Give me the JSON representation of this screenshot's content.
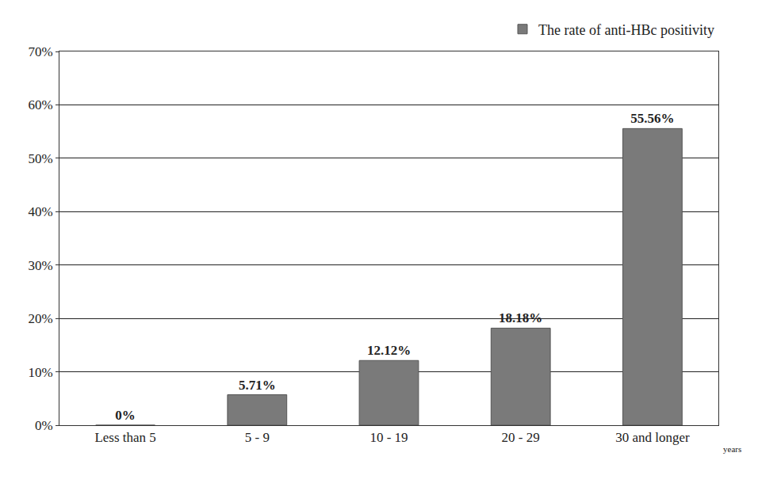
{
  "chart_data": {
    "type": "bar",
    "categories": [
      "Less than 5",
      "5 - 9",
      "10 - 19",
      "20 - 29",
      "30 and longer"
    ],
    "series": [
      {
        "name": "The rate of anti-HBc positivity",
        "color": "#7a7a7a",
        "values": [
          0,
          5.71,
          12.12,
          18.18,
          55.56
        ],
        "value_labels": [
          "0%",
          "5.71%",
          "12.12%",
          "18.18%",
          "55.56%"
        ]
      }
    ],
    "x_label": "years",
    "ylim": [
      0,
      70
    ],
    "yticks": [
      {
        "value": 0,
        "label": "0%"
      },
      {
        "value": 10,
        "label": "10%"
      },
      {
        "value": 20,
        "label": "20%"
      },
      {
        "value": 30,
        "label": "30%"
      },
      {
        "value": 40,
        "label": "40%"
      },
      {
        "value": 50,
        "label": "50%"
      },
      {
        "value": 60,
        "label": "60%"
      },
      {
        "value": 70,
        "label": "70%"
      }
    ],
    "grid": true,
    "data_labels": true,
    "legend": "top right"
  }
}
